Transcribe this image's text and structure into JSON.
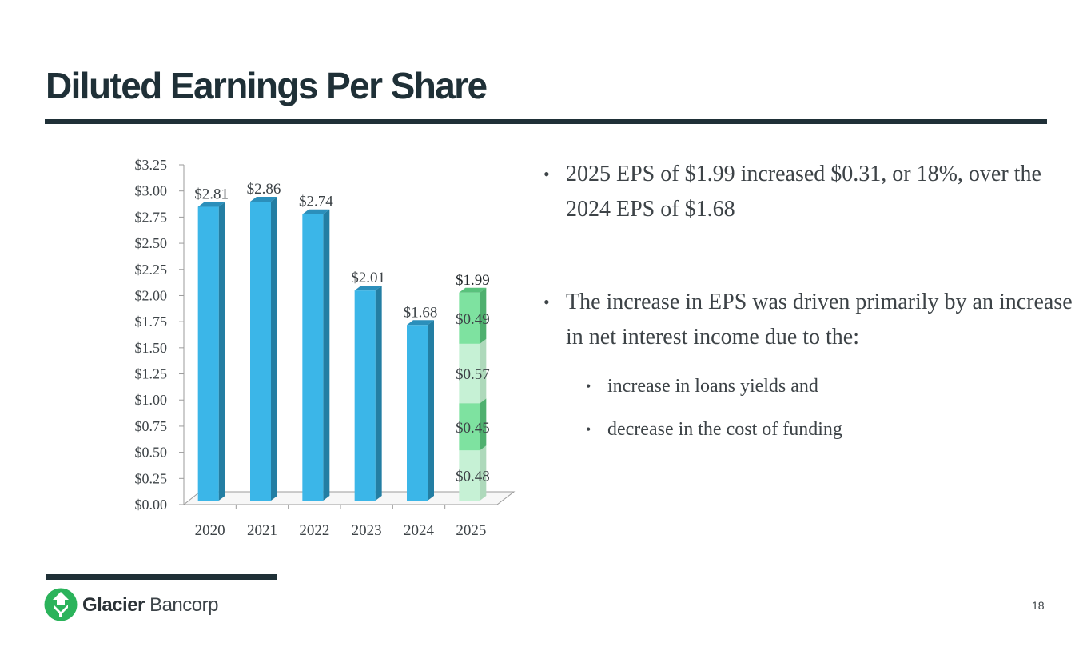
{
  "slide": {
    "title": "Diluted Earnings Per Share",
    "page_number": "18"
  },
  "bullets": {
    "b1": "2025 EPS of $1.99 increased $0.31, or 18%, over the 2024 EPS of $1.68",
    "b2": "The increase in EPS was driven primarily by an increase in net interest income due to the:",
    "sub1": "increase in loans yields and",
    "sub2": "decrease in the cost of funding",
    "marker": "•"
  },
  "logo": {
    "name_bold": "Glacier",
    "name_light": "Bancorp",
    "icon": "glacier-logo-icon"
  },
  "colors": {
    "title": "#1f3037",
    "bar_front": "#3bb6e8",
    "bar_side": "#237ea3",
    "bar_top": "#2b8fbb",
    "stack_dark": "#7ee2a0",
    "stack_light": "#c6f1d5",
    "logo_green": "#2bb35b"
  },
  "chart_data": {
    "type": "bar",
    "title": "",
    "xlabel": "",
    "ylabel": "",
    "ylim": [
      0,
      3.25
    ],
    "yticks": [
      "$0.00",
      "$0.25",
      "$0.50",
      "$0.75",
      "$1.00",
      "$1.25",
      "$1.50",
      "$1.75",
      "$2.00",
      "$2.25",
      "$2.50",
      "$2.75",
      "$3.00",
      "$3.25"
    ],
    "categories": [
      "2020",
      "2021",
      "2022",
      "2023",
      "2024",
      "2025"
    ],
    "values": [
      2.81,
      2.86,
      2.74,
      2.01,
      1.68,
      1.99
    ],
    "value_labels": [
      "$2.81",
      "$2.86",
      "$2.74",
      "$2.01",
      "$1.68",
      "$1.99"
    ],
    "stack_2025": [
      {
        "value": 0.48,
        "label": "$0.48"
      },
      {
        "value": 0.45,
        "label": "$0.45"
      },
      {
        "value": 0.57,
        "label": "$0.57"
      },
      {
        "value": 0.49,
        "label": "$0.49"
      }
    ]
  }
}
